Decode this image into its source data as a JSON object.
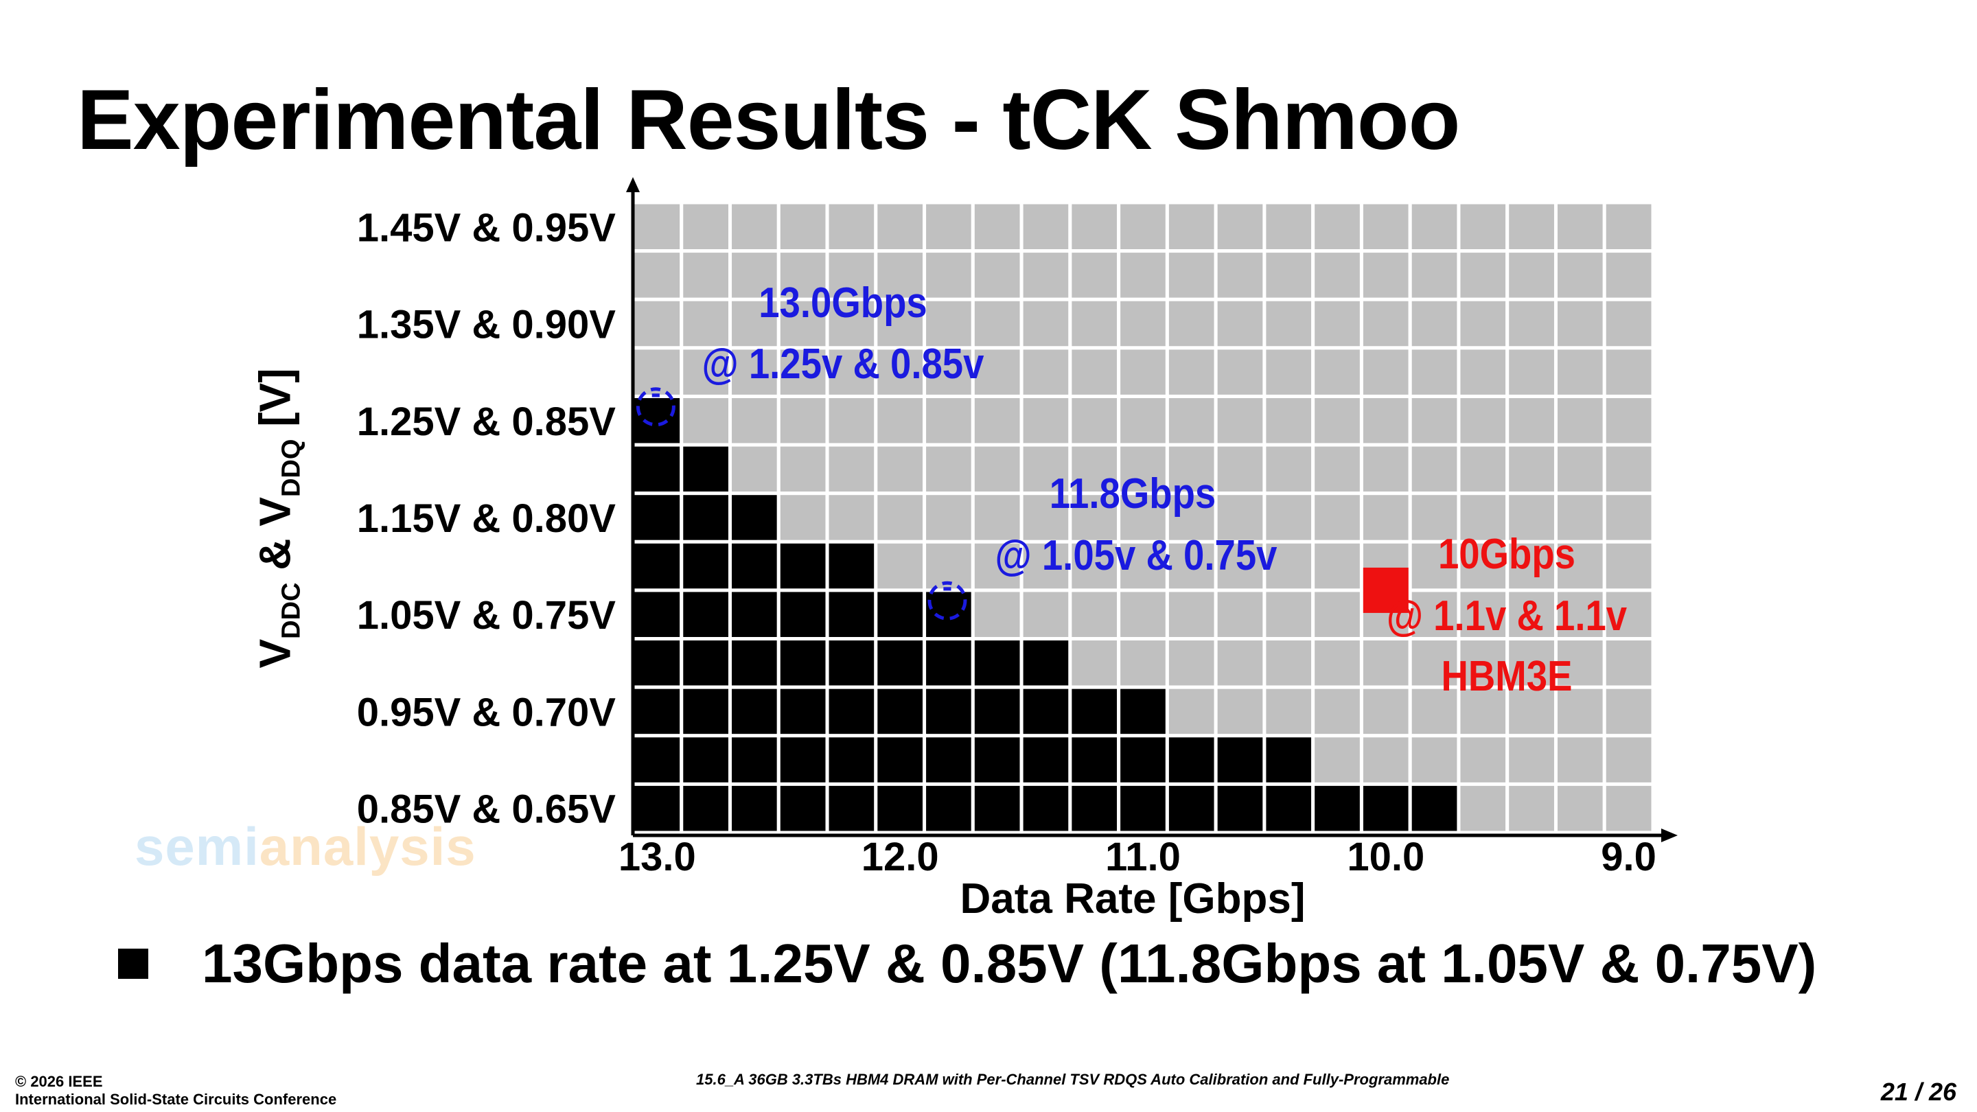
{
  "title": "Experimental Results - tCK Shmoo",
  "watermark": {
    "part1": "semi",
    "part2": "analysis"
  },
  "chart_data": {
    "type": "heatmap",
    "ylabel_main": "V",
    "ylabel_sub1": "DDC",
    "ylabel_mid": " & V",
    "ylabel_sub2": "DDQ",
    "ylabel_end": " [V]",
    "xlabel": "Data Rate [Gbps]",
    "x_tick_labels": [
      "13.0",
      "12.0",
      "11.0",
      "10.0",
      "9.0"
    ],
    "x_range": [
      13.0,
      9.0
    ],
    "y_tick_labels": [
      "1.45V & 0.95V",
      "1.35V & 0.90V",
      "1.25V & 0.85V",
      "1.15V & 0.80V",
      "1.05V & 0.75V",
      "0.95V & 0.70V",
      "0.85V & 0.65V"
    ],
    "columns": 21,
    "rows": 13,
    "pass_color": "#000000",
    "fail_color": "#c0c0c0",
    "pass_columns_per_row": [
      0,
      0,
      0,
      0,
      1,
      2,
      3,
      5,
      7,
      9,
      11,
      14,
      17
    ],
    "annotations": [
      {
        "line1": "13.0Gbps",
        "line2": "@ 1.25v & 0.85v",
        "color": "#1a1adf"
      },
      {
        "line1": "11.8Gbps",
        "line2": "@ 1.05v & 0.75v",
        "color": "#1a1adf"
      },
      {
        "line1": "10Gbps",
        "line2": "@ 1.1v & 1.1v",
        "line3": "HBM3E",
        "color": "#ee1111"
      }
    ],
    "markers": [
      {
        "shape": "dashed-circle",
        "label": "-",
        "rate": 13.0,
        "row": 4,
        "color": "#1a1adf"
      },
      {
        "shape": "dashed-circle",
        "label": "-",
        "rate": 11.8,
        "row": 8,
        "color": "#1a1adf"
      },
      {
        "shape": "square",
        "rate": 10.0,
        "row": 7.5,
        "color": "#ee1111"
      }
    ]
  },
  "bullet": {
    "text": "13Gbps data rate at 1.25V & 0.85V (11.8Gbps at 1.05V & 0.75V)"
  },
  "footer": {
    "copyright": "© 2026 IEEE",
    "conference": "International Solid-State Circuits Conference",
    "paper": "15.6_A 36GB 3.3TBs HBM4 DRAM with Per-Channel TSV RDQS Auto Calibration and Fully-Programmable",
    "page": "21 / 26"
  }
}
